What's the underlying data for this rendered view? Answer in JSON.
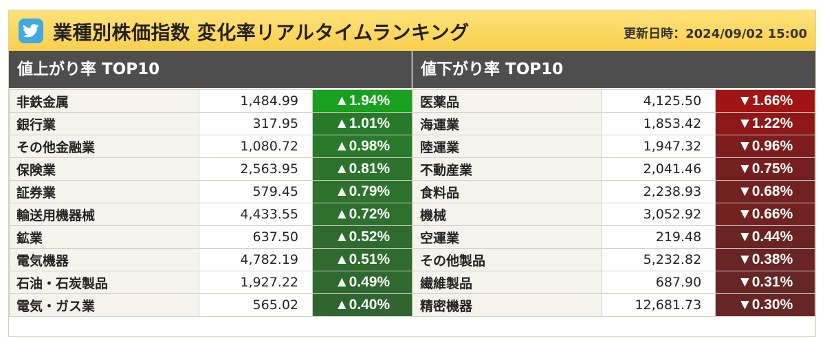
{
  "header": {
    "title": "業種別株価指数 変化率リアルタイムランキング",
    "updated": "更新日時：2024/09/02 15:00"
  },
  "gainers": {
    "heading": "値上がり率 TOP10",
    "rows": [
      {
        "name": "非鉄金属",
        "value": "1,484.99",
        "change": "▲1.94%",
        "color": "#19a01f"
      },
      {
        "name": "銀行業",
        "value": "317.95",
        "change": "▲1.01%",
        "color": "#287a2b"
      },
      {
        "name": "その他金融業",
        "value": "1,080.72",
        "change": "▲0.98%",
        "color": "#2a7a2c"
      },
      {
        "name": "保険業",
        "value": "2,563.95",
        "change": "▲0.81%",
        "color": "#2d732d"
      },
      {
        "name": "証券業",
        "value": "579.45",
        "change": "▲0.79%",
        "color": "#2d732d"
      },
      {
        "name": "輸送用機器械",
        "value": "4,433.55",
        "change": "▲0.72%",
        "color": "#2e702e"
      },
      {
        "name": "鉱業",
        "value": "637.50",
        "change": "▲0.52%",
        "color": "#2f6a2f"
      },
      {
        "name": "電気機器",
        "value": "4,782.19",
        "change": "▲0.51%",
        "color": "#2f6a2f"
      },
      {
        "name": "石油・石炭製品",
        "value": "1,927.22",
        "change": "▲0.49%",
        "color": "#2f692f"
      },
      {
        "name": "電気・ガス業",
        "value": "565.02",
        "change": "▲0.40%",
        "color": "#30652f"
      }
    ]
  },
  "losers": {
    "heading": "値下がり率 TOP10",
    "rows": [
      {
        "name": "医薬品",
        "value": "4,125.50",
        "change": "▼1.66%",
        "color": "#a01414"
      },
      {
        "name": "海運業",
        "value": "1,853.42",
        "change": "▼1.22%",
        "color": "#8e1818"
      },
      {
        "name": "陸運業",
        "value": "1,947.32",
        "change": "▼0.96%",
        "color": "#7e1d1d"
      },
      {
        "name": "不動産業",
        "value": "2,041.46",
        "change": "▼0.75%",
        "color": "#752020"
      },
      {
        "name": "食料品",
        "value": "2,238.93",
        "change": "▼0.68%",
        "color": "#722121"
      },
      {
        "name": "機械",
        "value": "3,052.92",
        "change": "▼0.66%",
        "color": "#722121"
      },
      {
        "name": "空運業",
        "value": "219.48",
        "change": "▼0.44%",
        "color": "#6b2424"
      },
      {
        "name": "その他製品",
        "value": "5,232.82",
        "change": "▼0.38%",
        "color": "#692525"
      },
      {
        "name": "繊維製品",
        "value": "687.90",
        "change": "▼0.31%",
        "color": "#672626"
      },
      {
        "name": "精密機器",
        "value": "12,681.73",
        "change": "▼0.30%",
        "color": "#672626"
      }
    ]
  },
  "icons": {
    "share": "twitter-bird-icon",
    "share_color": "#41a9e3"
  }
}
